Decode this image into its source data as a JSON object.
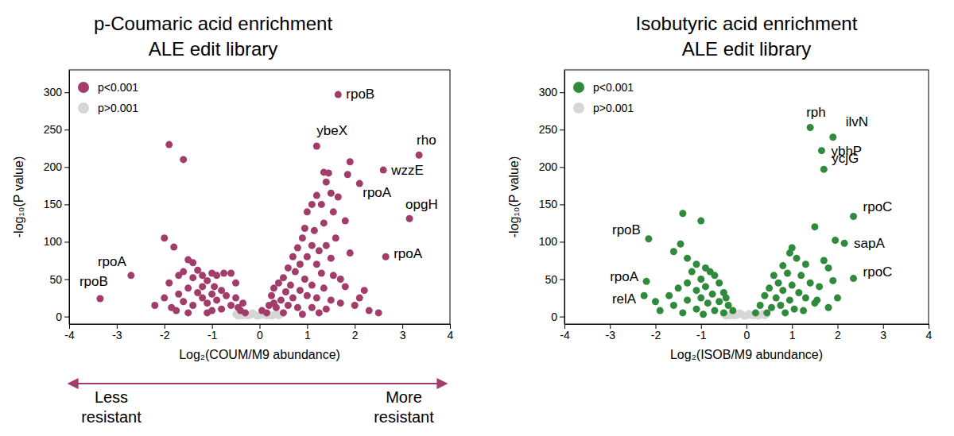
{
  "chart_data": [
    {
      "type": "scatter",
      "title": "p-Coumaric acid enrichment",
      "subtitle": "ALE edit library",
      "x_label": "Log₂(COUM/M9 abundance)",
      "y_label": "-log₁₀(P value)",
      "xlim": [
        -4,
        4
      ],
      "xticks": [
        -4,
        -3,
        -2,
        -1,
        0,
        1,
        2,
        3,
        4
      ],
      "ylim": [
        -10,
        330
      ],
      "yticks": [
        0,
        50,
        100,
        150,
        200,
        250,
        300
      ],
      "grid": false,
      "legend": "upper left",
      "marker": "circle",
      "series": [
        {
          "name": "p<0.001",
          "color": "#a23d6b",
          "x": [
            1.65,
            1.2,
            3.35,
            2.6,
            2.1,
            3.15,
            2.65,
            -2.7,
            -3.35,
            -1.9,
            -1.6,
            -2.0,
            -1.8,
            -1.5,
            -1.4,
            -1.3,
            -1.6,
            -1.7,
            -1.4,
            -1.2,
            -1.1,
            -1.0,
            -0.9,
            -0.75,
            -0.6,
            -0.5,
            -1.9,
            -2.0,
            -1.85,
            -1.6,
            -1.5,
            -1.3,
            -1.2,
            -1.1,
            -1.0,
            -0.9,
            -0.8,
            -0.7,
            -0.6,
            -0.5,
            -0.45,
            -0.4,
            -0.35,
            -1.4,
            -1.7,
            -2.2,
            -1.5,
            -1.0,
            -0.8,
            -0.3,
            -1.2,
            -0.95,
            -1.75,
            -1.1,
            1.9,
            1.35,
            1.45,
            1.85,
            1.4,
            1.5,
            1.2,
            1.3,
            1.65,
            1.1,
            1.0,
            1.55,
            1.8,
            1.35,
            1.15,
            0.95,
            1.6,
            0.9,
            1.1,
            1.4,
            1.25,
            0.8,
            1.9,
            0.7,
            1.0,
            1.5,
            0.85,
            1.2,
            0.6,
            0.75,
            1.3,
            1.55,
            1.7,
            0.5,
            0.95,
            0.4,
            0.65,
            1.1,
            0.3,
            0.55,
            0.85,
            1.35,
            1.8,
            0.25,
            0.45,
            0.7,
            1.0,
            1.2,
            1.5,
            0.2,
            0.35,
            0.6,
            0.8,
            1.1,
            1.4,
            1.7,
            2.0,
            2.2,
            2.3,
            2.5,
            0.15,
            0.5,
            0.9,
            1.25,
            2.1,
            0.05,
            0.3
          ],
          "values": [
            297,
            228,
            216,
            196,
            178,
            131,
            80,
            55,
            24,
            230,
            210,
            105,
            93,
            76,
            72,
            62,
            60,
            55,
            52,
            55,
            48,
            58,
            55,
            58,
            58,
            45,
            45,
            25,
            12,
            20,
            38,
            32,
            25,
            18,
            30,
            22,
            35,
            28,
            15,
            25,
            12,
            8,
            18,
            15,
            30,
            15,
            5,
            8,
            10,
            5,
            40,
            40,
            8,
            5,
            207,
            193,
            192,
            190,
            180,
            165,
            162,
            150,
            160,
            150,
            140,
            140,
            128,
            125,
            115,
            118,
            105,
            105,
            95,
            95,
            88,
            92,
            85,
            80,
            80,
            78,
            70,
            70,
            65,
            60,
            58,
            55,
            50,
            52,
            50,
            45,
            42,
            42,
            38,
            33,
            35,
            38,
            40,
            28,
            22,
            25,
            28,
            25,
            22,
            15,
            12,
            15,
            12,
            12,
            10,
            18,
            15,
            35,
            8,
            5,
            5,
            5,
            3,
            5,
            25,
            8,
            18
          ]
        },
        {
          "name": "p>0.001",
          "color": "#d6d6d6",
          "x": [
            -0.5,
            -0.4,
            -0.3,
            -0.2,
            -0.1,
            0,
            0.1,
            0.2,
            0.3,
            0.4,
            -0.35,
            -0.15,
            0.05,
            0.15,
            -0.05,
            0.25,
            -0.25,
            0.35,
            -0.45,
            0.45
          ],
          "values": [
            3,
            2,
            4,
            2,
            3,
            1,
            2,
            3,
            2,
            1,
            1,
            5,
            4,
            1,
            0.5,
            0.5,
            0.8,
            4,
            0.5,
            3
          ]
        }
      ],
      "annotations": [
        {
          "text": "rpoB",
          "x": 1.65,
          "y": 297
        },
        {
          "text": "ybeX",
          "x": 1.2,
          "y": 228
        },
        {
          "text": "rho",
          "x": 3.35,
          "y": 216
        },
        {
          "text": "wzzE",
          "x": 2.6,
          "y": 196
        },
        {
          "text": "rpoA",
          "x": 2.1,
          "y": 178
        },
        {
          "text": "opgH",
          "x": 3.15,
          "y": 131
        },
        {
          "text": "rpoA",
          "x": 2.65,
          "y": 80
        },
        {
          "text": "rpoA",
          "x": -2.7,
          "y": 55
        },
        {
          "text": "rpoB",
          "x": -3.35,
          "y": 24
        }
      ]
    },
    {
      "type": "scatter",
      "title": "Isobutyric acid enrichment",
      "subtitle": "ALE edit library",
      "x_label": "Log₂(ISOB/M9 abundance)",
      "y_label": "-log₁₀(P value)",
      "xlim": [
        -4,
        4
      ],
      "xticks": [
        -4,
        -3,
        -2,
        -1,
        0,
        1,
        2,
        3,
        4
      ],
      "ylim": [
        -10,
        330
      ],
      "yticks": [
        0,
        50,
        100,
        150,
        200,
        250,
        300
      ],
      "grid": false,
      "legend": "upper left",
      "marker": "circle",
      "series": [
        {
          "name": "p<0.001",
          "color": "#2f8a3c",
          "x": [
            1.4,
            1.9,
            1.65,
            1.7,
            2.35,
            2.15,
            2.35,
            -2.15,
            -2.2,
            -2.25,
            -1.4,
            -1.0,
            -1.45,
            -1.6,
            -1.3,
            -1.1,
            -1.2,
            -0.9,
            -0.8,
            -0.7,
            -1.0,
            -0.6,
            -0.9,
            -1.3,
            -1.5,
            -1.1,
            -0.5,
            -0.75,
            -1.0,
            -1.3,
            -0.6,
            -0.85,
            -1.6,
            -0.4,
            -1.1,
            -0.7,
            -1.9,
            -2.0,
            -0.5,
            -0.3,
            -1.4,
            -0.95,
            -1.7,
            -0.45,
            1.5,
            1.0,
            0.95,
            1.1,
            1.7,
            1.3,
            1.8,
            0.8,
            0.6,
            0.9,
            1.2,
            0.7,
            1.0,
            1.4,
            1.6,
            0.5,
            0.8,
            1.15,
            0.4,
            0.65,
            0.95,
            1.3,
            1.5,
            0.3,
            0.55,
            0.75,
            1.05,
            1.25,
            1.8,
            2.0,
            0.45,
            0.2,
            0.85,
            1.9,
            1.95,
            1.55
          ],
          "values": [
            253,
            240,
            222,
            197,
            134,
            98,
            51,
            104,
            47,
            28,
            138,
            128,
            97,
            87,
            78,
            70,
            60,
            65,
            60,
            55,
            50,
            45,
            40,
            45,
            38,
            35,
            32,
            30,
            25,
            22,
            20,
            18,
            15,
            15,
            10,
            8,
            8,
            20,
            5,
            8,
            5,
            3,
            28,
            25,
            120,
            92,
            85,
            78,
            75,
            70,
            65,
            68,
            55,
            58,
            55,
            45,
            42,
            45,
            40,
            38,
            35,
            32,
            28,
            25,
            22,
            25,
            18,
            15,
            12,
            15,
            10,
            8,
            12,
            25,
            5,
            5,
            5,
            48,
            102,
            22
          ]
        },
        {
          "name": "p>0.001",
          "color": "#d6d6d6",
          "x": [
            -0.5,
            -0.4,
            -0.3,
            -0.2,
            -0.1,
            0,
            0.1,
            0.2,
            0.3,
            0.4,
            -0.35,
            -0.15,
            0.05,
            0.15,
            -0.05,
            0.25,
            -0.25,
            0.35,
            -0.45,
            0.45
          ],
          "values": [
            3,
            2,
            4,
            2,
            3,
            1,
            2,
            3,
            2,
            1,
            1,
            5,
            4,
            1,
            0.5,
            0.5,
            0.8,
            4,
            0.5,
            3
          ]
        }
      ],
      "annotations": [
        {
          "text": "rph",
          "x": 1.4,
          "y": 253
        },
        {
          "text": "ilvN",
          "x": 1.9,
          "y": 240
        },
        {
          "text": "ybhP",
          "x": 1.65,
          "y": 222
        },
        {
          "text": "ycjG",
          "x": 1.7,
          "y": 197
        },
        {
          "text": "rpoC",
          "x": 2.35,
          "y": 134
        },
        {
          "text": "sapA",
          "x": 2.15,
          "y": 98
        },
        {
          "text": "rpoC",
          "x": 2.35,
          "y": 51
        },
        {
          "text": "rpoB",
          "x": -2.15,
          "y": 104
        },
        {
          "text": "rpoA",
          "x": -2.2,
          "y": 47
        },
        {
          "text": "relA",
          "x": -2.25,
          "y": 28
        }
      ]
    }
  ],
  "footer": {
    "left": [
      "Less",
      "resistant"
    ],
    "right": [
      "More",
      "resistant"
    ]
  }
}
